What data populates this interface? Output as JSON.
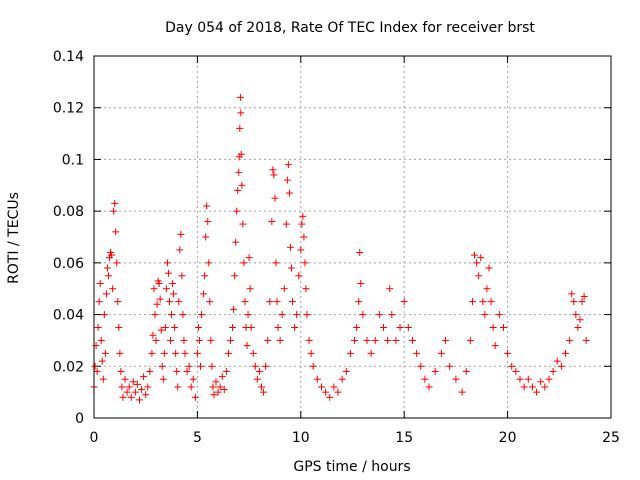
{
  "chart_data": {
    "type": "scatter",
    "title": "Day 054 of 2018, Rate Of TEC Index for receiver brst",
    "xlabel": "GPS time / hours",
    "ylabel": "ROTI / TECUs",
    "xlim": [
      0,
      25
    ],
    "ylim": [
      0,
      0.14
    ],
    "xticks": [
      0,
      5,
      10,
      15,
      20,
      25
    ],
    "xtick_labels": [
      "0",
      "5",
      "10",
      "15",
      "20",
      "25"
    ],
    "yticks": [
      0,
      0.02,
      0.04,
      0.06,
      0.08,
      0.1,
      0.12,
      0.14
    ],
    "ytick_labels": [
      "0",
      "0.02",
      "0.04",
      "0.06",
      "0.08",
      "0.1",
      "0.12",
      "0.14"
    ],
    "grid": true,
    "marker": "+",
    "color": "#ff0000",
    "series": [
      {
        "name": "ROTI",
        "points": [
          [
            0.0,
            0.012
          ],
          [
            0.05,
            0.02
          ],
          [
            0.1,
            0.028
          ],
          [
            0.15,
            0.018
          ],
          [
            0.2,
            0.035
          ],
          [
            0.25,
            0.045
          ],
          [
            0.3,
            0.052
          ],
          [
            0.35,
            0.03
          ],
          [
            0.4,
            0.022
          ],
          [
            0.45,
            0.015
          ],
          [
            0.5,
            0.04
          ],
          [
            0.55,
            0.025
          ],
          [
            0.6,
            0.048
          ],
          [
            0.65,
            0.058
          ],
          [
            0.7,
            0.055
          ],
          [
            0.75,
            0.062
          ],
          [
            0.8,
            0.064
          ],
          [
            0.85,
            0.063
          ],
          [
            0.9,
            0.05
          ],
          [
            0.95,
            0.08
          ],
          [
            1.0,
            0.083
          ],
          [
            1.05,
            0.072
          ],
          [
            1.1,
            0.06
          ],
          [
            1.15,
            0.045
          ],
          [
            1.2,
            0.035
          ],
          [
            1.25,
            0.025
          ],
          [
            1.3,
            0.018
          ],
          [
            1.35,
            0.012
          ],
          [
            1.4,
            0.008
          ],
          [
            1.5,
            0.015
          ],
          [
            1.6,
            0.01
          ],
          [
            1.7,
            0.012
          ],
          [
            1.8,
            0.008
          ],
          [
            1.9,
            0.014
          ],
          [
            2.0,
            0.01
          ],
          [
            2.1,
            0.013
          ],
          [
            2.2,
            0.007
          ],
          [
            2.3,
            0.011
          ],
          [
            2.4,
            0.016
          ],
          [
            2.5,
            0.009
          ],
          [
            2.6,
            0.012
          ],
          [
            2.7,
            0.018
          ],
          [
            2.8,
            0.025
          ],
          [
            2.85,
            0.032
          ],
          [
            2.9,
            0.05
          ],
          [
            2.95,
            0.04
          ],
          [
            3.0,
            0.03
          ],
          [
            3.05,
            0.044
          ],
          [
            3.1,
            0.053
          ],
          [
            3.15,
            0.052
          ],
          [
            3.2,
            0.046
          ],
          [
            3.25,
            0.034
          ],
          [
            3.3,
            0.02
          ],
          [
            3.35,
            0.015
          ],
          [
            3.4,
            0.025
          ],
          [
            3.45,
            0.035
          ],
          [
            3.5,
            0.05
          ],
          [
            3.55,
            0.06
          ],
          [
            3.6,
            0.056
          ],
          [
            3.65,
            0.045
          ],
          [
            3.7,
            0.03
          ],
          [
            3.75,
            0.04
          ],
          [
            3.8,
            0.052
          ],
          [
            3.85,
            0.048
          ],
          [
            3.9,
            0.035
          ],
          [
            3.95,
            0.025
          ],
          [
            4.0,
            0.018
          ],
          [
            4.05,
            0.012
          ],
          [
            4.1,
            0.045
          ],
          [
            4.15,
            0.065
          ],
          [
            4.2,
            0.071
          ],
          [
            4.25,
            0.055
          ],
          [
            4.3,
            0.04
          ],
          [
            4.35,
            0.03
          ],
          [
            4.4,
            0.025
          ],
          [
            4.5,
            0.018
          ],
          [
            4.6,
            0.02
          ],
          [
            4.7,
            0.012
          ],
          [
            4.8,
            0.015
          ],
          [
            4.9,
            0.008
          ],
          [
            5.0,
            0.025
          ],
          [
            5.05,
            0.035
          ],
          [
            5.1,
            0.03
          ],
          [
            5.15,
            0.02
          ],
          [
            5.2,
            0.04
          ],
          [
            5.3,
            0.048
          ],
          [
            5.35,
            0.055
          ],
          [
            5.4,
            0.07
          ],
          [
            5.45,
            0.082
          ],
          [
            5.5,
            0.076
          ],
          [
            5.55,
            0.06
          ],
          [
            5.6,
            0.045
          ],
          [
            5.65,
            0.03
          ],
          [
            5.7,
            0.02
          ],
          [
            5.75,
            0.012
          ],
          [
            5.8,
            0.009
          ],
          [
            5.9,
            0.014
          ],
          [
            6.0,
            0.01
          ],
          [
            6.1,
            0.012
          ],
          [
            6.2,
            0.016
          ],
          [
            6.3,
            0.011
          ],
          [
            6.4,
            0.018
          ],
          [
            6.5,
            0.025
          ],
          [
            6.6,
            0.03
          ],
          [
            6.7,
            0.035
          ],
          [
            6.75,
            0.042
          ],
          [
            6.8,
            0.055
          ],
          [
            6.85,
            0.068
          ],
          [
            6.9,
            0.08
          ],
          [
            6.95,
            0.088
          ],
          [
            7.0,
            0.095
          ],
          [
            7.02,
            0.101
          ],
          [
            7.05,
            0.112
          ],
          [
            7.08,
            0.124
          ],
          [
            7.1,
            0.118
          ],
          [
            7.12,
            0.102
          ],
          [
            7.15,
            0.09
          ],
          [
            7.2,
            0.075
          ],
          [
            7.25,
            0.06
          ],
          [
            7.3,
            0.045
          ],
          [
            7.35,
            0.035
          ],
          [
            7.4,
            0.028
          ],
          [
            7.45,
            0.04
          ],
          [
            7.5,
            0.062
          ],
          [
            7.55,
            0.05
          ],
          [
            7.6,
            0.035
          ],
          [
            7.7,
            0.025
          ],
          [
            7.8,
            0.02
          ],
          [
            7.9,
            0.015
          ],
          [
            8.0,
            0.018
          ],
          [
            8.1,
            0.012
          ],
          [
            8.2,
            0.01
          ],
          [
            8.3,
            0.02
          ],
          [
            8.4,
            0.03
          ],
          [
            8.5,
            0.045
          ],
          [
            8.6,
            0.076
          ],
          [
            8.65,
            0.096
          ],
          [
            8.7,
            0.094
          ],
          [
            8.75,
            0.085
          ],
          [
            8.8,
            0.06
          ],
          [
            8.85,
            0.045
          ],
          [
            8.9,
            0.035
          ],
          [
            9.0,
            0.03
          ],
          [
            9.1,
            0.04
          ],
          [
            9.2,
            0.05
          ],
          [
            9.3,
            0.075
          ],
          [
            9.35,
            0.092
          ],
          [
            9.4,
            0.098
          ],
          [
            9.45,
            0.087
          ],
          [
            9.5,
            0.066
          ],
          [
            9.55,
            0.058
          ],
          [
            9.6,
            0.045
          ],
          [
            9.7,
            0.035
          ],
          [
            9.8,
            0.04
          ],
          [
            9.9,
            0.055
          ],
          [
            10.0,
            0.065
          ],
          [
            10.05,
            0.075
          ],
          [
            10.1,
            0.078
          ],
          [
            10.15,
            0.07
          ],
          [
            10.2,
            0.06
          ],
          [
            10.25,
            0.05
          ],
          [
            10.3,
            0.04
          ],
          [
            10.4,
            0.03
          ],
          [
            10.5,
            0.025
          ],
          [
            10.6,
            0.02
          ],
          [
            10.8,
            0.015
          ],
          [
            11.0,
            0.012
          ],
          [
            11.2,
            0.01
          ],
          [
            11.4,
            0.008
          ],
          [
            11.6,
            0.012
          ],
          [
            11.8,
            0.01
          ],
          [
            12.0,
            0.015
          ],
          [
            12.2,
            0.018
          ],
          [
            12.4,
            0.025
          ],
          [
            12.6,
            0.03
          ],
          [
            12.7,
            0.035
          ],
          [
            12.8,
            0.045
          ],
          [
            12.85,
            0.064
          ],
          [
            12.9,
            0.052
          ],
          [
            13.0,
            0.04
          ],
          [
            13.2,
            0.03
          ],
          [
            13.4,
            0.025
          ],
          [
            13.6,
            0.03
          ],
          [
            13.8,
            0.04
          ],
          [
            14.0,
            0.035
          ],
          [
            14.2,
            0.03
          ],
          [
            14.3,
            0.05
          ],
          [
            14.4,
            0.04
          ],
          [
            14.6,
            0.03
          ],
          [
            14.8,
            0.035
          ],
          [
            15.0,
            0.045
          ],
          [
            15.2,
            0.035
          ],
          [
            15.4,
            0.03
          ],
          [
            15.6,
            0.025
          ],
          [
            15.8,
            0.02
          ],
          [
            16.0,
            0.015
          ],
          [
            16.2,
            0.012
          ],
          [
            16.5,
            0.018
          ],
          [
            16.8,
            0.025
          ],
          [
            17.0,
            0.03
          ],
          [
            17.2,
            0.02
          ],
          [
            17.5,
            0.015
          ],
          [
            17.8,
            0.01
          ],
          [
            18.0,
            0.018
          ],
          [
            18.2,
            0.03
          ],
          [
            18.3,
            0.045
          ],
          [
            18.4,
            0.063
          ],
          [
            18.5,
            0.06
          ],
          [
            18.6,
            0.055
          ],
          [
            18.7,
            0.062
          ],
          [
            18.8,
            0.045
          ],
          [
            18.9,
            0.04
          ],
          [
            19.0,
            0.05
          ],
          [
            19.1,
            0.058
          ],
          [
            19.2,
            0.045
          ],
          [
            19.3,
            0.035
          ],
          [
            19.4,
            0.028
          ],
          [
            19.6,
            0.04
          ],
          [
            19.8,
            0.035
          ],
          [
            20.0,
            0.025
          ],
          [
            20.2,
            0.02
          ],
          [
            20.4,
            0.018
          ],
          [
            20.6,
            0.015
          ],
          [
            20.8,
            0.012
          ],
          [
            21.0,
            0.015
          ],
          [
            21.2,
            0.012
          ],
          [
            21.4,
            0.01
          ],
          [
            21.6,
            0.014
          ],
          [
            21.8,
            0.012
          ],
          [
            22.0,
            0.015
          ],
          [
            22.2,
            0.018
          ],
          [
            22.4,
            0.022
          ],
          [
            22.6,
            0.02
          ],
          [
            22.8,
            0.025
          ],
          [
            23.0,
            0.03
          ],
          [
            23.1,
            0.048
          ],
          [
            23.2,
            0.045
          ],
          [
            23.3,
            0.04
          ],
          [
            23.4,
            0.035
          ],
          [
            23.5,
            0.038
          ],
          [
            23.6,
            0.045
          ],
          [
            23.7,
            0.047
          ],
          [
            23.8,
            0.03
          ]
        ]
      }
    ]
  }
}
